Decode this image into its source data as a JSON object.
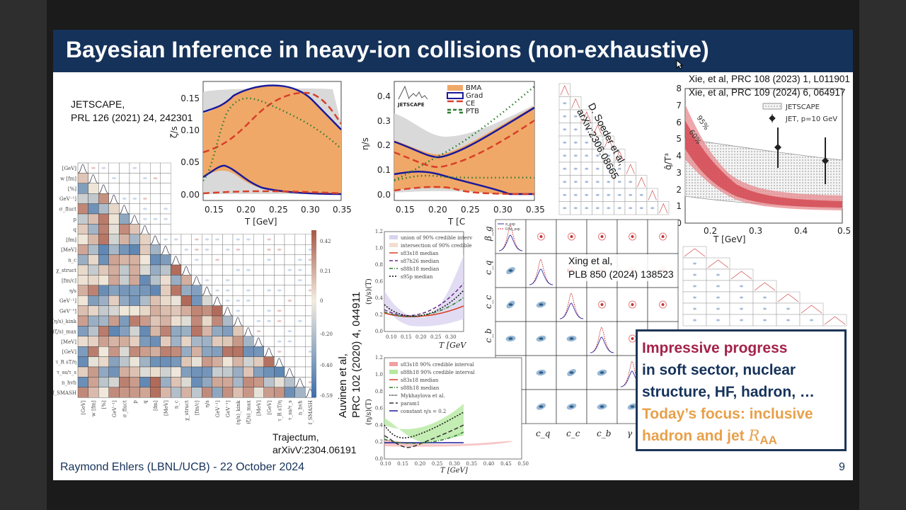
{
  "slide": {
    "title": "Bayesian Inference in heavy-ion collisions (non-exhaustive)",
    "footer": "Raymond Ehlers (LBNL/UCB) - 22 October 2024",
    "page_number": "9"
  },
  "citations": {
    "jetscape": [
      "JETSCAPE,",
      "PRL 126 (2021) 24, 242301"
    ],
    "trajectum": [
      "Trajectum,",
      "arXivV:2304.06191"
    ],
    "soeder": [
      "D. Soeder et al,",
      "arXiv:2306.08665"
    ],
    "xie": [
      "Xie, et al, PRC 108 (2023) 1, L011901",
      "Xie, et al, PRC 109 (2024) 6, 064917"
    ],
    "auvinen": [
      "Auvinen et al,",
      "PRC 102 (2020) 4, 044911"
    ],
    "xing": [
      "Xing et al,",
      "PLB 850 (2024) 138523"
    ]
  },
  "zeta_plot": {
    "ylabel": "ζ/s",
    "xlabel": "T [GeV]",
    "xticks": [
      "0.15",
      "0.20",
      "0.25",
      "0.30",
      "0.35"
    ],
    "yticks": [
      "0.00",
      "0.05",
      "0.10",
      "0.15"
    ]
  },
  "eta_plot": {
    "ylabel": "η/s",
    "xlabel": "T [C",
    "xticks": [
      "0.15",
      "0.20",
      "0.25",
      "0.30",
      "0.35"
    ],
    "yticks": [
      "0.0",
      "0.1",
      "0.2",
      "0.3",
      "0.4"
    ],
    "logo": "JETSCAPE",
    "legend": [
      "BMA",
      "Grad",
      "CE",
      "PTB"
    ],
    "colors": {
      "BMA": "#f0a868",
      "Grad": "#1a1a9a",
      "CE": "#d8402a",
      "PTB": "#2e7d32",
      "prior": "#d9d9d9"
    }
  },
  "xie_plot": {
    "ylabel": "q̂/T³",
    "xlabel": "T [GeV]",
    "xticks": [
      "0.2",
      "0.3",
      "0.4",
      "0.5"
    ],
    "yticks": [
      "0",
      "1",
      "2",
      "3",
      "4",
      "5",
      "6",
      "7",
      "8"
    ],
    "legend": [
      "JETSCAPE",
      "JET, p=10 GeV"
    ],
    "band_labels": [
      "95%",
      "60%"
    ]
  },
  "trajectum_matrix": {
    "row_labels": [
      "[GeV]",
      "w [fm]",
      "[%]",
      "GeV⁻¹]",
      "σ_fluct",
      "p",
      "q",
      "[fm]",
      "[MeV]",
      "n_c",
      "χ_struct",
      "[fm/c]",
      "η/s",
      "GeV⁻¹]",
      "GeV⁻¹]",
      "(η/s)_kink",
      "(ζ/s)_max",
      "[MeV]",
      "[GeV]",
      "τ_R sT/η",
      "τ_ss/τ_s",
      "n_hvh",
      "f_SMASH"
    ],
    "colorbar_ticks": [
      "0.42",
      "0.21",
      "0",
      "-0.20",
      "-0.40",
      "-0.59"
    ]
  },
  "auvinen_top": {
    "ylabel": "(η/s)(T)",
    "xlabel": "T [GeV",
    "yticks": [
      "0.0",
      "0.2",
      "0.4",
      "0.6",
      "0.8",
      "1.0",
      "1.2"
    ],
    "xticks": [
      "0.10",
      "0.15",
      "0.20",
      "0.25",
      "0.30"
    ],
    "legend": [
      "union of 90% credible interv",
      "intersection of 90% credible",
      "s83s18 median",
      "s87h26 median",
      "s88h18 median",
      "s95p median"
    ]
  },
  "auvinen_bottom": {
    "ylabel": "(η/s)(T)",
    "xlabel": "T [GeV]",
    "yticks": [
      "0.0",
      "0.2",
      "0.4",
      "0.6",
      "0.8",
      "1.0",
      "1.2"
    ],
    "xticks": [
      "0.10",
      "0.15",
      "0.20",
      "0.25",
      "0.30",
      "0.35",
      "0.40",
      "0.45",
      "0.50"
    ],
    "legend": [
      "s83s18 90% credible interval",
      "s88h18 90% credible interval",
      "s83s18 median",
      "s88h18 median",
      "Mykhaylova et al.",
      "param1",
      "constant η/s = 0.2"
    ]
  },
  "xing_plot": {
    "params": [
      "β_g",
      "c_q",
      "c_c",
      "c_b",
      "γ",
      "α"
    ],
    "legend": [
      "α_exp",
      "0.5α_exp"
    ]
  },
  "summary_box": {
    "line1": "Impressive progress",
    "line2": "in soft sector, nuclear",
    "line3": "structure, HF, hadron, …",
    "line4": "Today’s focus: inclusive",
    "line5_prefix": "hadron and jet ",
    "line5_symbol": "R",
    "line5_sub": "AA",
    "colors": {
      "highlight": "#a3224a",
      "body": "#15325a",
      "focus": "#e8a04a",
      "border": "#1d3556"
    }
  }
}
